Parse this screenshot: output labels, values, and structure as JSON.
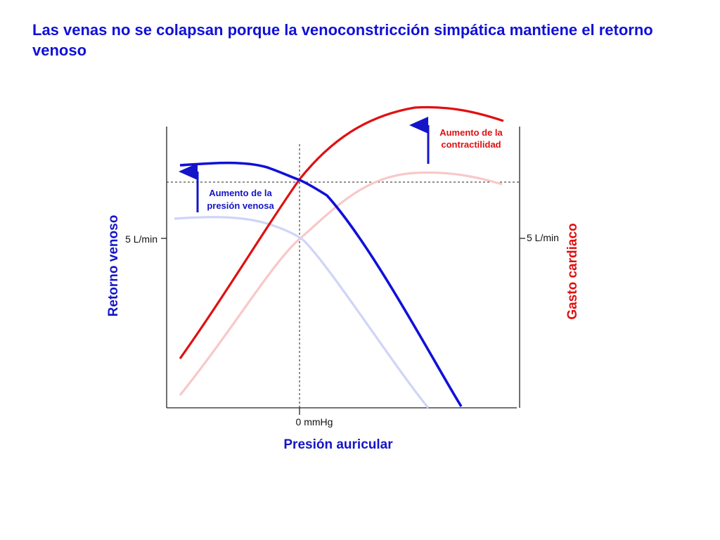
{
  "title": "Las venas no se colapsan porque la venoconstricción simpática mantiene el retorno venoso",
  "chart_data": {
    "type": "line",
    "title": "Las venas no se colapsan porque la venoconstricción simpática mantiene el retorno venoso",
    "xlabel": "Presión auricular",
    "ylabel_left": "Retorno venoso",
    "ylabel_right": "Gasto cardiaco",
    "x_tick_labels": [
      "0 mmHg"
    ],
    "y_tick_label_left": "5 L/min",
    "y_tick_label_right": "5 L/min",
    "grid": false,
    "series": [
      {
        "name": "",
        "color": "#e01010",
        "state": "aumento de la contractilidad"
      },
      {
        "name": "",
        "color": "#f8c8c8",
        "state": "basal"
      },
      {
        "name": "",
        "color": "#1010d8",
        "state": "aumento de la presión venosa"
      },
      {
        "name": "",
        "color": "#d0d4f8",
        "state": "basal"
      }
    ],
    "annotations": [
      {
        "text_lines": [
          "Aumento de la",
          "contractilidad"
        ],
        "color": "#e01010",
        "arrow": "up"
      },
      {
        "text_lines": [
          "Aumento de la",
          "presión venosa"
        ],
        "color": "#1414c8",
        "arrow": "up"
      }
    ]
  }
}
